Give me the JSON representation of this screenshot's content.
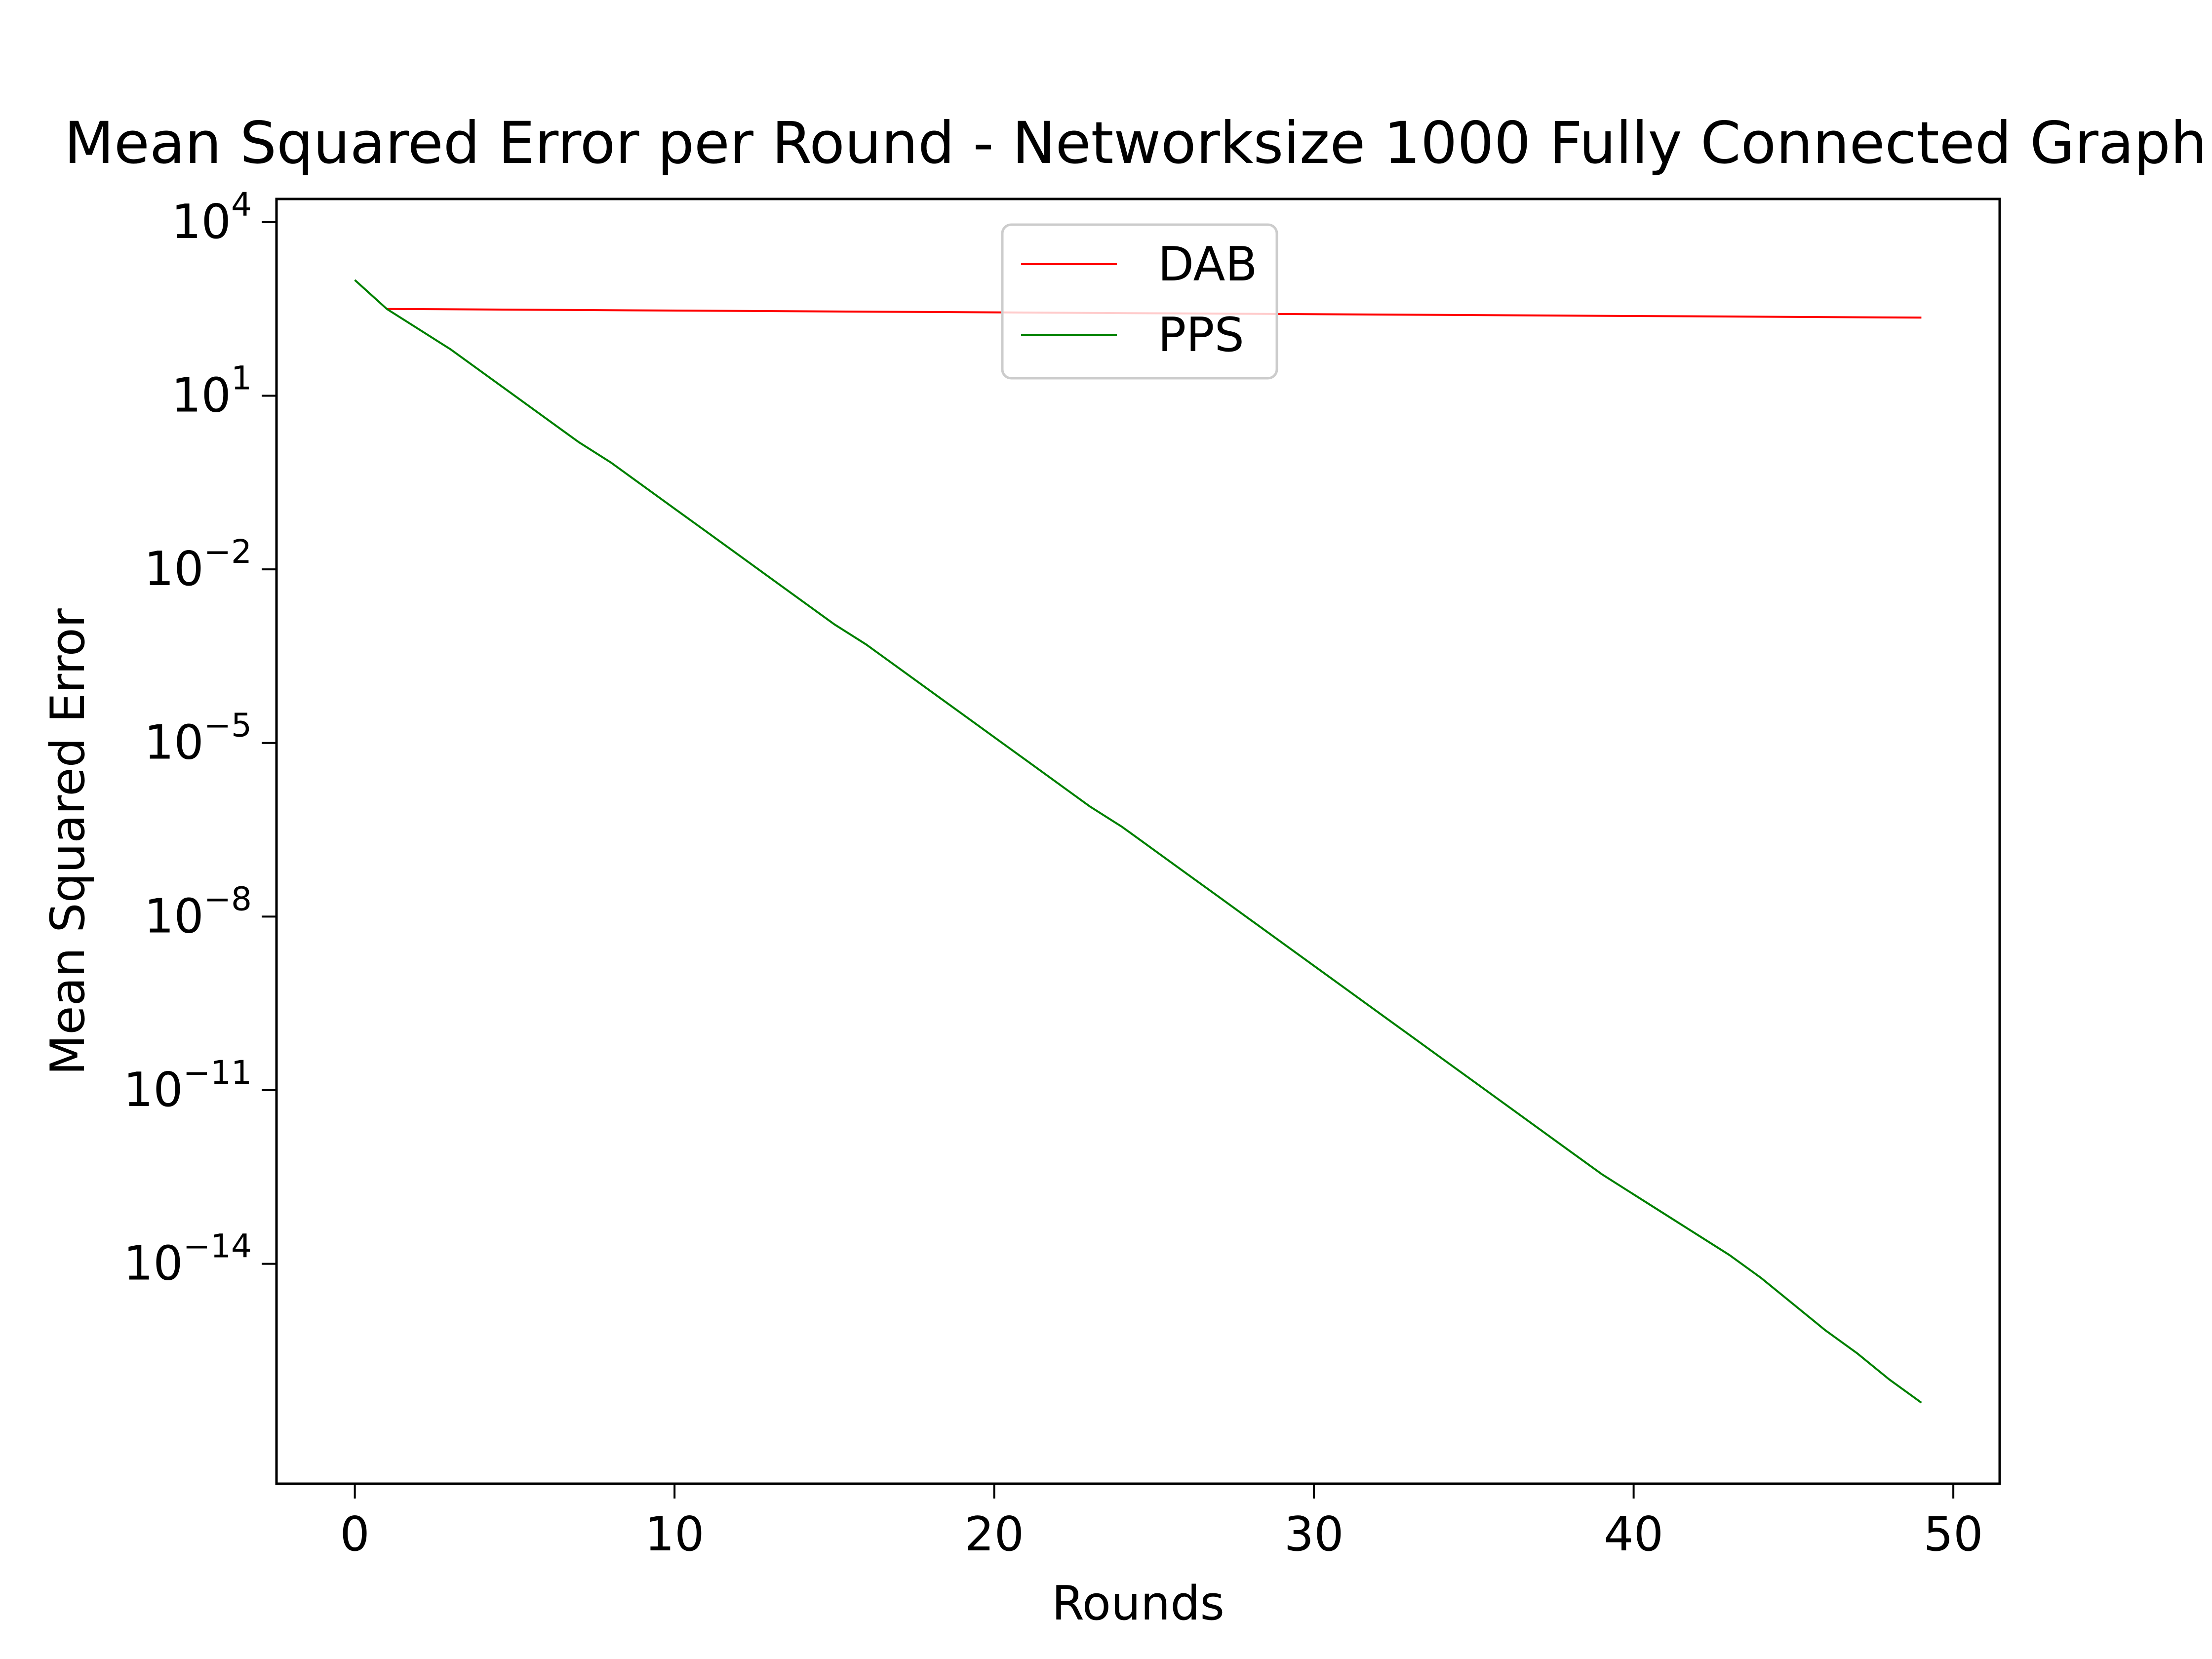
{
  "chart_data": {
    "type": "line",
    "title": "Mean Squared Error per Round - Networksize 1000 Fully Connected Graph",
    "xlabel": "Rounds",
    "ylabel": "Mean Squared Error",
    "xlim": [
      -2.45,
      51.45
    ],
    "ylim_log10": [
      -17.8,
      4.4
    ],
    "yscale": "log",
    "grid": false,
    "legend_position": "upper-center",
    "x_ticks": [
      0,
      10,
      20,
      30,
      40,
      50
    ],
    "y_ticks": [
      {
        "base": "10",
        "exp": "4",
        "log10": 4
      },
      {
        "base": "10",
        "exp": "1",
        "log10": 1
      },
      {
        "base": "10",
        "exp": "−2",
        "log10": -2
      },
      {
        "base": "10",
        "exp": "−5",
        "log10": -5
      },
      {
        "base": "10",
        "exp": "−8",
        "log10": -8
      },
      {
        "base": "10",
        "exp": "−11",
        "log10": -11
      },
      {
        "base": "10",
        "exp": "−14",
        "log10": -14
      }
    ],
    "series": [
      {
        "name": "DAB",
        "color": "#ff0000",
        "x": [
          1,
          49
        ],
        "log10_y": [
          2.5,
          2.35
        ]
      },
      {
        "name": "PPS",
        "color": "#008000",
        "x": [
          0,
          1,
          2,
          3,
          4,
          5,
          6,
          7,
          8,
          9,
          10,
          11,
          12,
          13,
          14,
          15,
          16,
          17,
          18,
          19,
          20,
          21,
          22,
          23,
          24,
          25,
          26,
          27,
          28,
          29,
          30,
          31,
          32,
          33,
          34,
          35,
          36,
          37,
          38,
          39,
          40,
          41,
          42,
          43,
          44,
          45,
          46,
          47,
          48,
          49
        ],
        "log10_y": [
          3.0,
          2.5,
          2.15,
          1.8,
          1.4,
          1.0,
          0.6,
          0.2,
          -0.15,
          -0.55,
          -0.95,
          -1.35,
          -1.75,
          -2.15,
          -2.55,
          -2.95,
          -3.3,
          -3.7,
          -4.1,
          -4.5,
          -4.9,
          -5.3,
          -5.7,
          -6.1,
          -6.45,
          -6.85,
          -7.25,
          -7.65,
          -8.05,
          -8.45,
          -8.85,
          -9.25,
          -9.65,
          -10.05,
          -10.45,
          -10.85,
          -11.25,
          -11.65,
          -12.05,
          -12.45,
          -12.8,
          -13.15,
          -13.5,
          -13.85,
          -14.25,
          -14.7,
          -15.15,
          -15.55,
          -16.0,
          -16.4
        ]
      }
    ]
  }
}
